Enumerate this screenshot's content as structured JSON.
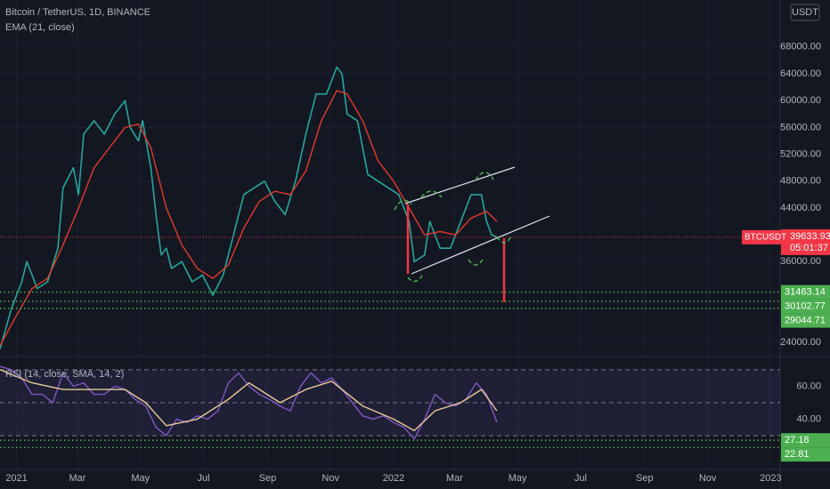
{
  "chart_data": [
    {
      "type": "line",
      "title": "Bitcoin / TetherUS, 1D, BINANCE",
      "y_unit": "USDT",
      "xlim": [
        -16,
        734
      ],
      "xticks": [
        {
          "value": 0,
          "label": "2021"
        },
        {
          "value": 59,
          "label": "Mar"
        },
        {
          "value": 120,
          "label": "May"
        },
        {
          "value": 181,
          "label": "Jul"
        },
        {
          "value": 243,
          "label": "Sep"
        },
        {
          "value": 304,
          "label": "Nov"
        },
        {
          "value": 365,
          "label": "2022"
        },
        {
          "value": 424,
          "label": "Mar"
        },
        {
          "value": 485,
          "label": "May"
        },
        {
          "value": 546,
          "label": "Jul"
        },
        {
          "value": 608,
          "label": "Sep"
        },
        {
          "value": 669,
          "label": "Nov"
        },
        {
          "value": 730,
          "label": "2023"
        }
      ],
      "ylim": [
        22000,
        75000
      ],
      "yticks": [
        {
          "value": 24000,
          "label": "24000.00"
        },
        {
          "value": 36000,
          "label": "36000.00"
        },
        {
          "value": 44000,
          "label": "44000.00"
        },
        {
          "value": 48000,
          "label": "48000.00"
        },
        {
          "value": 52000,
          "label": "52000.00"
        },
        {
          "value": 56000,
          "label": "56000.00"
        },
        {
          "value": 60000,
          "label": "60000.00"
        },
        {
          "value": 64000,
          "label": "64000.00"
        },
        {
          "value": 68000,
          "label": "68000.00"
        }
      ],
      "series": [
        {
          "name": "BTCUSDT",
          "color": "#26a69a",
          "x": [
            -16,
            -5,
            5,
            10,
            20,
            30,
            40,
            45,
            55,
            60,
            65,
            75,
            85,
            95,
            105,
            110,
            118,
            122,
            130,
            135,
            140,
            145,
            150,
            160,
            170,
            180,
            190,
            200,
            210,
            220,
            230,
            240,
            250,
            260,
            270,
            280,
            290,
            300,
            310,
            315,
            320,
            330,
            340,
            350,
            360,
            370,
            380,
            385,
            395,
            400,
            410,
            420,
            430,
            440,
            450,
            455,
            460,
            465
          ],
          "values": [
            23000,
            29000,
            33000,
            36000,
            32000,
            33000,
            38000,
            47000,
            50000,
            46000,
            55000,
            57000,
            55000,
            58000,
            60000,
            56000,
            54000,
            57000,
            50000,
            43000,
            37000,
            38000,
            35000,
            36000,
            33000,
            34000,
            31000,
            34000,
            40000,
            46000,
            47000,
            48000,
            45000,
            43000,
            48000,
            55000,
            61000,
            61000,
            65000,
            64000,
            58000,
            57000,
            49000,
            48000,
            47000,
            46000,
            42000,
            36000,
            37000,
            42000,
            38000,
            38000,
            42000,
            46000,
            46000,
            42000,
            40000,
            39633.93
          ]
        },
        {
          "name": "EMA (21, close)",
          "color": "#e5392a",
          "x": [
            -16,
            0,
            15,
            30,
            45,
            60,
            75,
            90,
            105,
            118,
            130,
            145,
            160,
            175,
            190,
            205,
            220,
            235,
            250,
            265,
            280,
            295,
            310,
            320,
            335,
            350,
            365,
            380,
            395,
            410,
            425,
            440,
            455,
            465
          ],
          "values": [
            23500,
            28000,
            32000,
            33500,
            38500,
            44000,
            50000,
            53000,
            56000,
            56500,
            53000,
            44000,
            38500,
            35000,
            33500,
            35500,
            41000,
            45000,
            46500,
            46000,
            49500,
            57000,
            61500,
            61000,
            57000,
            51000,
            48000,
            44000,
            40000,
            40500,
            40000,
            42500,
            43500,
            42000
          ]
        }
      ],
      "last_label": "BTCUSDT",
      "last_price": 39633.93,
      "countdown": "05:01:37",
      "levels": [
        31463.14,
        30102.77,
        29044.71
      ],
      "level_color": "#4caf50"
    },
    {
      "type": "line",
      "title": "RSI (14, close, SMA, 14, 2)",
      "xlim": [
        -16,
        734
      ],
      "ylim": [
        10,
        78
      ],
      "yticks": [
        {
          "value": 40,
          "label": "40.00"
        },
        {
          "value": 60,
          "label": "60.00"
        }
      ],
      "hlines": [
        70,
        50,
        30
      ],
      "series": [
        {
          "color": "#7e57c2",
          "x": [
            -16,
            -5,
            5,
            15,
            25,
            35,
            45,
            55,
            65,
            75,
            85,
            95,
            105,
            115,
            125,
            135,
            145,
            155,
            165,
            175,
            185,
            195,
            205,
            215,
            225,
            235,
            245,
            255,
            265,
            275,
            285,
            295,
            305,
            315,
            325,
            335,
            345,
            355,
            365,
            375,
            385,
            395,
            405,
            415,
            425,
            435,
            445,
            455,
            465
          ],
          "values": [
            72,
            70,
            65,
            55,
            55,
            50,
            68,
            60,
            62,
            55,
            55,
            60,
            58,
            52,
            48,
            35,
            30,
            40,
            38,
            42,
            40,
            45,
            62,
            68,
            60,
            55,
            52,
            48,
            45,
            60,
            68,
            62,
            65,
            58,
            50,
            42,
            40,
            42,
            38,
            35,
            28,
            40,
            55,
            50,
            48,
            52,
            62,
            55,
            38
          ]
        },
        {
          "color": "#e8c99a",
          "x": [
            -16,
            15,
            45,
            75,
            105,
            125,
            145,
            175,
            205,
            225,
            255,
            280,
            305,
            335,
            365,
            385,
            405,
            430,
            450,
            465
          ],
          "values": [
            70,
            62,
            58,
            58,
            58,
            50,
            36,
            40,
            52,
            62,
            50,
            58,
            63,
            48,
            40,
            33,
            45,
            50,
            58,
            45
          ]
        }
      ],
      "levels": [
        27.18,
        22.81
      ],
      "level_color": "#4caf50"
    }
  ]
}
